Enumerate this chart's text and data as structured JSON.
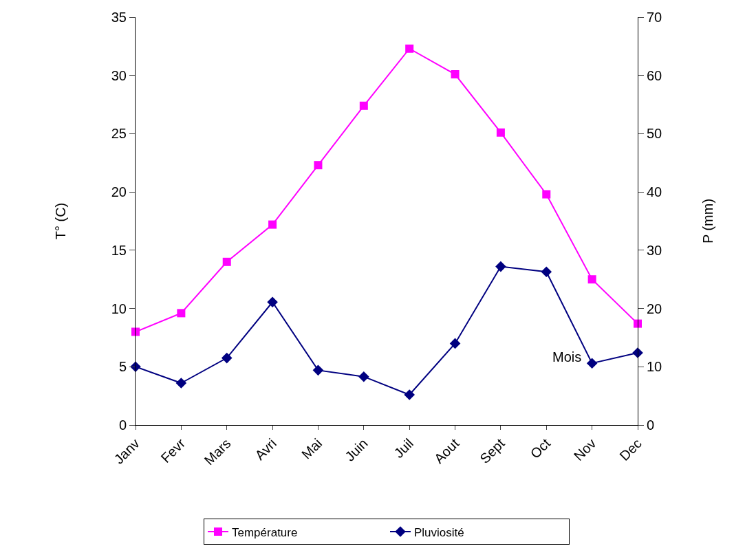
{
  "chart_data": {
    "type": "line",
    "xlabel": "Mois",
    "ylabel": "T° (C)",
    "y2label": "P (mm)",
    "categories": [
      "Janv",
      "Fevr",
      "Mars",
      "Avri",
      "Mai",
      "Juin",
      "Juil",
      "Aout",
      "Sept",
      "Oct",
      "Nov",
      "Dec"
    ],
    "series": [
      {
        "name": "Température",
        "color": "#ff00ff",
        "marker": "square",
        "values": [
          8.0,
          9.6,
          14.0,
          17.2,
          22.3,
          27.4,
          32.3,
          30.1,
          25.1,
          19.8,
          12.5,
          8.7
        ]
      },
      {
        "name": "Pluviosité",
        "color": "#000080",
        "marker": "diamond",
        "axis": "y2",
        "values": [
          10.0,
          7.2,
          11.5,
          21.1,
          9.4,
          8.3,
          5.2,
          14.0,
          27.2,
          26.3,
          10.6,
          12.4
        ]
      }
    ],
    "ylim": [
      0,
      35
    ],
    "yticks": [
      0,
      5,
      10,
      15,
      20,
      25,
      30,
      35
    ],
    "y2lim": [
      0,
      70
    ],
    "y2ticks": [
      0,
      10,
      20,
      30,
      40,
      50,
      60,
      70
    ],
    "legend": "bottom",
    "line_style": "solid"
  }
}
